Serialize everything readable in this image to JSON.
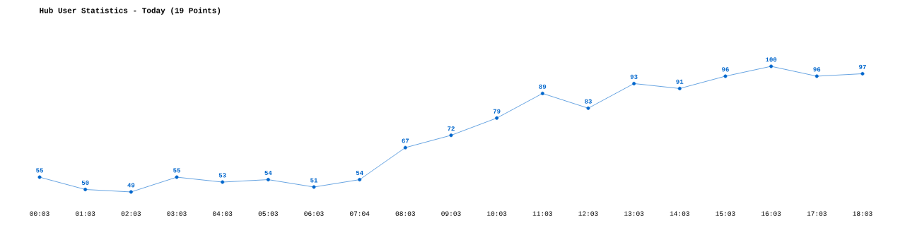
{
  "chart_data": {
    "type": "line",
    "title": "Hub User Statistics - Today (19 Points)",
    "categories": [
      "00:03",
      "01:03",
      "02:03",
      "03:03",
      "04:03",
      "05:03",
      "06:03",
      "07:04",
      "08:03",
      "09:03",
      "10:03",
      "11:03",
      "12:03",
      "13:03",
      "14:03",
      "15:03",
      "16:03",
      "17:03",
      "18:03"
    ],
    "values": [
      55,
      50,
      49,
      55,
      53,
      54,
      51,
      54,
      67,
      72,
      79,
      89,
      83,
      93,
      91,
      96,
      100,
      96,
      97
    ],
    "color": "#0066cc",
    "marker": "circle",
    "data_labels": true
  }
}
